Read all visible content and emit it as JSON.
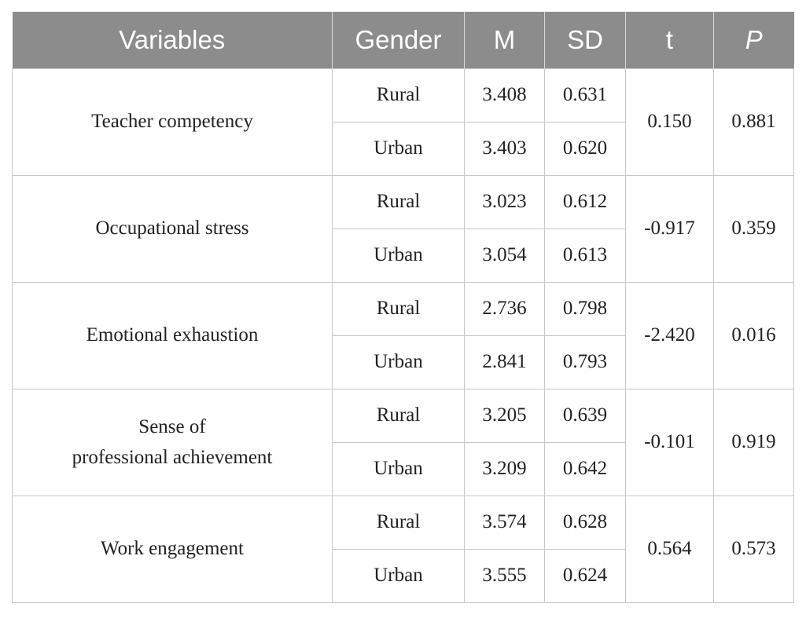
{
  "table": {
    "headers": [
      "Variables",
      "Gender",
      "M",
      "SD",
      "t",
      "P"
    ],
    "rows": [
      {
        "variable": "Teacher competency",
        "t": "0.150",
        "p": "0.881",
        "groups": [
          {
            "gender": "Rural",
            "m": "3.408",
            "sd": "0.631"
          },
          {
            "gender": "Urban",
            "m": "3.403",
            "sd": "0.620"
          }
        ]
      },
      {
        "variable": "Occupational stress",
        "t": "-0.917",
        "p": "0.359",
        "groups": [
          {
            "gender": "Rural",
            "m": "3.023",
            "sd": "0.612"
          },
          {
            "gender": "Urban",
            "m": "3.054",
            "sd": "0.613"
          }
        ]
      },
      {
        "variable": "Emotional exhaustion",
        "t": "-2.420",
        "p": "0.016",
        "groups": [
          {
            "gender": "Rural",
            "m": "2.736",
            "sd": "0.798"
          },
          {
            "gender": "Urban",
            "m": "2.841",
            "sd": "0.793"
          }
        ]
      },
      {
        "variable": "Sense of\nprofessional achievement",
        "t": "-0.101",
        "p": "0.919",
        "groups": [
          {
            "gender": "Rural",
            "m": "3.205",
            "sd": "0.639"
          },
          {
            "gender": "Urban",
            "m": "3.209",
            "sd": "0.642"
          }
        ]
      },
      {
        "variable": "Work engagement",
        "t": "0.564",
        "p": "0.573",
        "groups": [
          {
            "gender": "Rural",
            "m": "3.574",
            "sd": "0.628"
          },
          {
            "gender": "Urban",
            "m": "3.555",
            "sd": "0.624"
          }
        ]
      }
    ]
  }
}
